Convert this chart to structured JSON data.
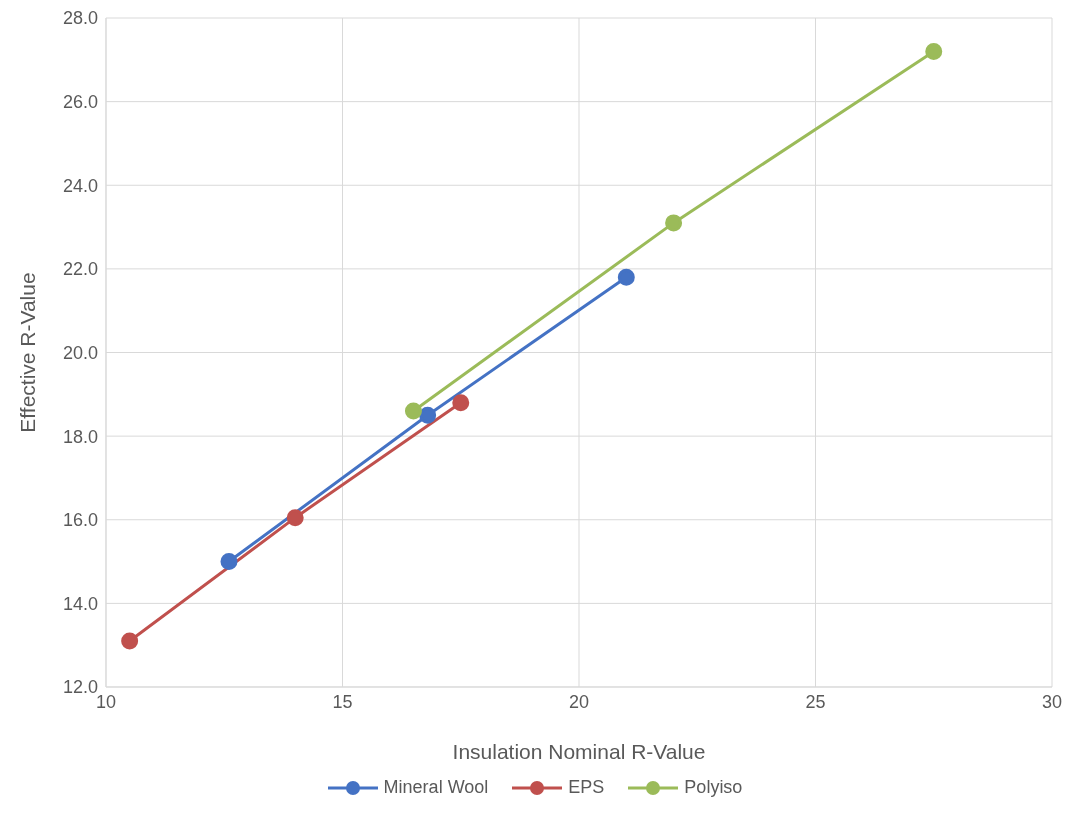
{
  "chart_data": {
    "type": "line",
    "xlabel": "Insulation Nominal R-Value",
    "ylabel": "Effective R-Value",
    "xlim": [
      10,
      30
    ],
    "xticks": [
      10,
      15,
      20,
      25,
      30
    ],
    "ylim": [
      12,
      28
    ],
    "yticks": [
      {
        "value": 12,
        "label": "12.0"
      },
      {
        "value": 14,
        "label": "14.0"
      },
      {
        "value": 16,
        "label": "16.0"
      },
      {
        "value": 18,
        "label": "18.0"
      },
      {
        "value": 20,
        "label": "20.0"
      },
      {
        "value": 22,
        "label": "22.0"
      },
      {
        "value": 24,
        "label": "24.0"
      },
      {
        "value": 26,
        "label": "26.0"
      },
      {
        "value": 28,
        "label": "28.0"
      }
    ],
    "grid": true,
    "legend": "bottom",
    "marker": "circle",
    "line_style": "solid",
    "series": [
      {
        "name": "Mineral Wool",
        "color": "#4472c4",
        "x": [
          12.6,
          16.8,
          21.0
        ],
        "values": [
          15.0,
          18.5,
          21.8
        ]
      },
      {
        "name": "EPS",
        "color": "#c0504d",
        "x": [
          10.5,
          14.0,
          17.5
        ],
        "values": [
          13.1,
          16.05,
          18.8
        ]
      },
      {
        "name": "Polyiso",
        "color": "#9bbb59",
        "x": [
          16.5,
          22.0,
          27.5
        ],
        "values": [
          18.6,
          23.1,
          27.2
        ]
      }
    ]
  }
}
